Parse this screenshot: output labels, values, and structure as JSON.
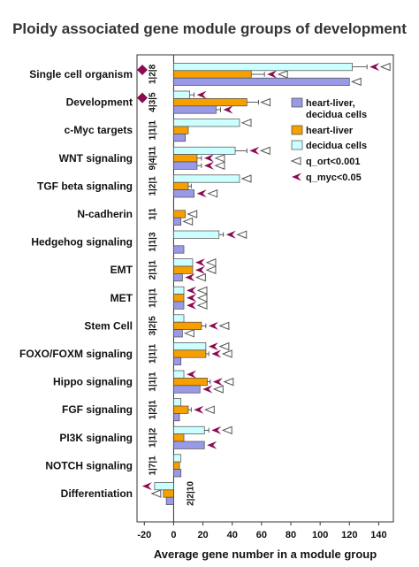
{
  "chart_data": {
    "type": "bar",
    "orientation": "horizontal",
    "title": "Ploidy associated gene module groups of development",
    "xlabel": "Average gene number in a module group",
    "xlim": [
      -25,
      150
    ],
    "xticks": [
      -20,
      0,
      20,
      40,
      60,
      80,
      100,
      120,
      140
    ],
    "categories": [
      "Single cell organism",
      "Development",
      "c-Myc targets",
      "WNT signaling",
      "TGF beta signaling",
      "N-cadherin",
      "Hedgehog signaling",
      "EMT",
      "MET",
      "Stem Cell",
      "FOXO/FOXM signaling",
      "Hippo signaling",
      "FGF signaling",
      "PI3K signaling",
      "NOTCH signaling",
      "Differentiation"
    ],
    "codes": [
      "1|2|8",
      "4|3|5",
      "1|1|1",
      "9|4|11",
      "1|2|1",
      "1|1",
      "1|1|3",
      "2|1|1",
      "1|1|1",
      "3|2|5",
      "1|1|1",
      "1|1|1",
      "1|2|1",
      "1|1|2",
      "1|7|1",
      "2|2|10"
    ],
    "diamond_marked": [
      "Single cell organism",
      "Development"
    ],
    "series": [
      {
        "name": "decidua cells",
        "color": "#ccffff",
        "values": [
          122,
          11,
          45,
          42,
          45,
          0,
          31,
          13,
          7,
          7,
          22,
          7,
          5,
          21,
          5,
          -13
        ]
      },
      {
        "name": "heart-liver",
        "color": "#f5a000",
        "values": [
          53,
          50,
          10,
          16,
          10,
          8,
          0,
          13,
          7,
          19,
          22,
          23,
          10,
          7,
          4,
          -7
        ]
      },
      {
        "name": "heart-liver, decidua cells",
        "color": "#9999e6",
        "values": [
          120,
          29,
          8,
          16,
          14,
          5,
          7,
          6,
          7,
          6,
          5,
          18,
          4,
          21,
          5,
          -5
        ]
      }
    ],
    "errors": [
      [
        10,
        3,
        0,
        8,
        0,
        0,
        3,
        0,
        0,
        0,
        0,
        0,
        0,
        3,
        0,
        0
      ],
      [
        9,
        8,
        0,
        3,
        2,
        0,
        0,
        0,
        0,
        3,
        2,
        2,
        2,
        0,
        0,
        0
      ],
      [
        0,
        3,
        0,
        3,
        0,
        0,
        0,
        0,
        0,
        0,
        0,
        0,
        0,
        0,
        0,
        0
      ]
    ],
    "q_ort_markers": [
      [
        true,
        false,
        true,
        true,
        true,
        false,
        true,
        true,
        true,
        false,
        true,
        false,
        false,
        true,
        false,
        false
      ],
      [
        true,
        true,
        false,
        true,
        false,
        true,
        false,
        true,
        true,
        true,
        true,
        true,
        true,
        false,
        false,
        true
      ],
      [
        true,
        false,
        false,
        true,
        true,
        true,
        false,
        true,
        true,
        true,
        false,
        true,
        false,
        false,
        false,
        false
      ]
    ],
    "q_myc_markers": [
      [
        true,
        true,
        false,
        true,
        false,
        false,
        true,
        true,
        true,
        false,
        true,
        true,
        false,
        true,
        false,
        true
      ],
      [
        true,
        false,
        false,
        true,
        false,
        false,
        false,
        true,
        true,
        true,
        true,
        true,
        true,
        false,
        false,
        false
      ],
      [
        false,
        true,
        false,
        true,
        true,
        false,
        false,
        true,
        true,
        false,
        false,
        true,
        false,
        true,
        false,
        false
      ]
    ],
    "legend": [
      {
        "label": "heart-liver, decidua cells",
        "kind": "box",
        "color": "#9999e6"
      },
      {
        "label": "heart-liver",
        "kind": "box",
        "color": "#f5a000"
      },
      {
        "label": "decidua cells",
        "kind": "box",
        "color": "#ccffff"
      },
      {
        "label": "q_ort<0.001",
        "kind": "open-arrow",
        "color": "#555555"
      },
      {
        "label": "q_myc<0.05",
        "kind": "filled-arrow",
        "color": "#8b0a50"
      }
    ],
    "legend_position": "top-right",
    "grid": false
  }
}
